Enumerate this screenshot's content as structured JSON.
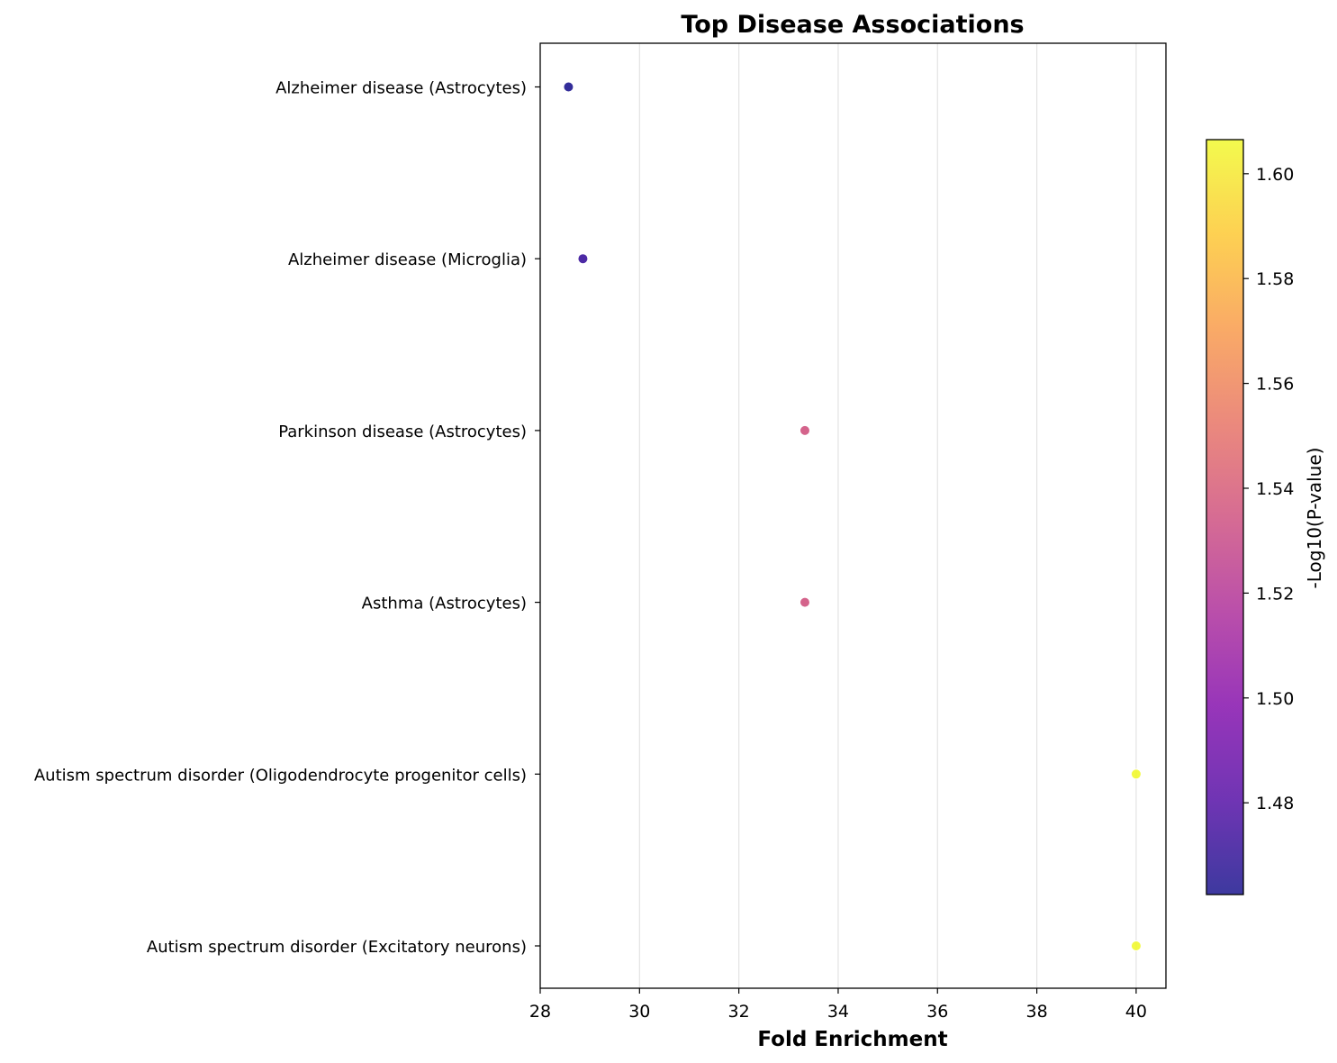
{
  "chart_data": {
    "type": "scatter",
    "title": "Top Disease Associations",
    "xlabel": "Fold Enrichment",
    "ylabel": "",
    "xlim": [
      28,
      40.6
    ],
    "xticks": [
      28,
      30,
      32,
      34,
      36,
      38,
      40
    ],
    "grid": "vertical",
    "categories": [
      "Alzheimer disease (Astrocytes)",
      "Alzheimer disease (Microglia)",
      "Parkinson disease (Astrocytes)",
      "Asthma (Astrocytes)",
      "Autism spectrum disorder (Oligodendrocyte progenitor cells)",
      "Autism spectrum disorder (Excitatory neurons)"
    ],
    "points": [
      {
        "category": "Alzheimer disease (Astrocytes)",
        "fold_enrichment": 28.57,
        "neg_log10_p": 1.463
      },
      {
        "category": "Alzheimer disease (Microglia)",
        "fold_enrichment": 28.86,
        "neg_log10_p": 1.472
      },
      {
        "category": "Parkinson disease (Astrocytes)",
        "fold_enrichment": 33.33,
        "neg_log10_p": 1.535
      },
      {
        "category": "Asthma (Astrocytes)",
        "fold_enrichment": 33.33,
        "neg_log10_p": 1.535
      },
      {
        "category": "Autism spectrum disorder (Oligodendrocyte progenitor cells)",
        "fold_enrichment": 40.0,
        "neg_log10_p": 1.606
      },
      {
        "category": "Autism spectrum disorder (Excitatory neurons)",
        "fold_enrichment": 40.0,
        "neg_log10_p": 1.606
      }
    ],
    "colorbar": {
      "label": "-Log10(P-value)",
      "colormap": "plasma",
      "range": [
        1.4625,
        1.6065
      ],
      "ticks": [
        "1.48",
        "1.50",
        "1.52",
        "1.54",
        "1.56",
        "1.58",
        "1.60"
      ],
      "tick_values": [
        1.48,
        1.5,
        1.52,
        1.54,
        1.56,
        1.58,
        1.6
      ],
      "position": "right"
    }
  }
}
